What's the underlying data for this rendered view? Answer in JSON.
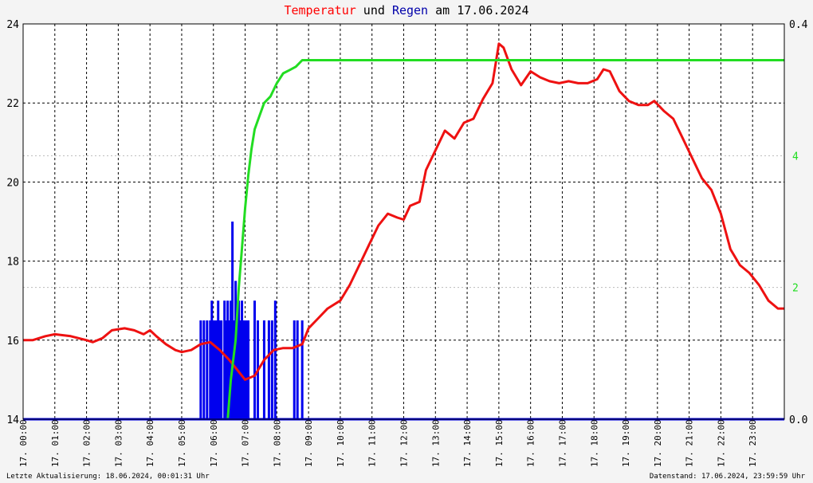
{
  "title": {
    "part1": "Temperatur",
    "part2": " und ",
    "part3": "Regen",
    "part4": " am 17.06.2024",
    "color1": "#ff0000",
    "color3": "#0000aa"
  },
  "footer": {
    "left": "Letzte Aktualisierung: 18.06.2024, 00:01:31 Uhr",
    "right": "Datenstand: 17.06.2024, 23:59:59 Uhr"
  },
  "chart_data": {
    "type": "line",
    "x_tick_labels": [
      "17. 00:00",
      "17. 01:00",
      "17. 02:00",
      "17. 03:00",
      "17. 04:00",
      "17. 05:00",
      "17. 06:00",
      "17. 07:00",
      "17. 08:00",
      "17. 09:00",
      "17. 10:00",
      "17. 11:00",
      "17. 12:00",
      "17. 13:00",
      "17. 14:00",
      "17. 15:00",
      "17. 16:00",
      "17. 17:00",
      "17. 18:00",
      "17. 19:00",
      "17. 20:00",
      "17. 21:00",
      "17. 22:00",
      "17. 23:00"
    ],
    "y_left": {
      "range": [
        14,
        24
      ],
      "ticks": [
        14,
        16,
        18,
        20,
        22,
        24
      ]
    },
    "y_right_rain": {
      "range": [
        0.0,
        0.4
      ],
      "ticks": [
        "0.0",
        "0.4"
      ],
      "color": "#0000aa"
    },
    "y_right_sum": {
      "range": [
        0,
        6
      ],
      "ticks": [
        "2",
        "4"
      ],
      "color": "#22dd22"
    },
    "grid": true,
    "series": [
      {
        "name": "Temperatur",
        "color": "#ee1111",
        "points": [
          [
            0,
            16.0
          ],
          [
            0.3,
            16.0
          ],
          [
            0.7,
            16.1
          ],
          [
            1.0,
            16.15
          ],
          [
            1.5,
            16.1
          ],
          [
            2.0,
            16.0
          ],
          [
            2.2,
            15.95
          ],
          [
            2.5,
            16.05
          ],
          [
            2.8,
            16.25
          ],
          [
            3.2,
            16.3
          ],
          [
            3.5,
            16.25
          ],
          [
            3.8,
            16.15
          ],
          [
            4.0,
            16.25
          ],
          [
            4.2,
            16.1
          ],
          [
            4.5,
            15.9
          ],
          [
            4.8,
            15.75
          ],
          [
            5.0,
            15.7
          ],
          [
            5.3,
            15.75
          ],
          [
            5.6,
            15.9
          ],
          [
            5.9,
            15.95
          ],
          [
            6.2,
            15.75
          ],
          [
            6.5,
            15.5
          ],
          [
            6.8,
            15.2
          ],
          [
            7.0,
            15.0
          ],
          [
            7.3,
            15.1
          ],
          [
            7.6,
            15.5
          ],
          [
            7.9,
            15.75
          ],
          [
            8.2,
            15.8
          ],
          [
            8.5,
            15.8
          ],
          [
            8.8,
            15.9
          ],
          [
            9.0,
            16.3
          ],
          [
            9.3,
            16.55
          ],
          [
            9.6,
            16.8
          ],
          [
            10.0,
            17.0
          ],
          [
            10.3,
            17.4
          ],
          [
            10.6,
            17.9
          ],
          [
            10.9,
            18.4
          ],
          [
            11.2,
            18.9
          ],
          [
            11.5,
            19.2
          ],
          [
            11.8,
            19.1
          ],
          [
            12.0,
            19.05
          ],
          [
            12.2,
            19.4
          ],
          [
            12.5,
            19.5
          ],
          [
            12.7,
            20.3
          ],
          [
            13.0,
            20.8
          ],
          [
            13.3,
            21.3
          ],
          [
            13.6,
            21.1
          ],
          [
            13.9,
            21.5
          ],
          [
            14.2,
            21.6
          ],
          [
            14.5,
            22.1
          ],
          [
            14.8,
            22.5
          ],
          [
            15.0,
            23.5
          ],
          [
            15.15,
            23.4
          ],
          [
            15.4,
            22.85
          ],
          [
            15.7,
            22.45
          ],
          [
            16.0,
            22.8
          ],
          [
            16.3,
            22.65
          ],
          [
            16.6,
            22.55
          ],
          [
            16.9,
            22.5
          ],
          [
            17.2,
            22.55
          ],
          [
            17.5,
            22.5
          ],
          [
            17.8,
            22.5
          ],
          [
            18.1,
            22.6
          ],
          [
            18.3,
            22.85
          ],
          [
            18.5,
            22.8
          ],
          [
            18.8,
            22.3
          ],
          [
            19.1,
            22.05
          ],
          [
            19.4,
            21.95
          ],
          [
            19.7,
            21.95
          ],
          [
            19.9,
            22.05
          ],
          [
            20.2,
            21.8
          ],
          [
            20.5,
            21.6
          ],
          [
            20.8,
            21.1
          ],
          [
            21.1,
            20.6
          ],
          [
            21.4,
            20.1
          ],
          [
            21.7,
            19.8
          ],
          [
            22.0,
            19.2
          ],
          [
            22.3,
            18.3
          ],
          [
            22.6,
            17.9
          ],
          [
            22.9,
            17.7
          ],
          [
            23.2,
            17.4
          ],
          [
            23.5,
            17.0
          ],
          [
            23.8,
            16.8
          ],
          [
            24.0,
            16.8
          ]
        ]
      },
      {
        "name": "Regensumme",
        "color": "#22dd22",
        "points": [
          [
            0,
            0
          ],
          [
            6.45,
            0
          ],
          [
            6.55,
            0.6
          ],
          [
            6.7,
            1.2
          ],
          [
            6.8,
            2.0
          ],
          [
            6.9,
            2.6
          ],
          [
            7.0,
            3.2
          ],
          [
            7.1,
            3.7
          ],
          [
            7.2,
            4.1
          ],
          [
            7.3,
            4.4
          ],
          [
            7.45,
            4.6
          ],
          [
            7.6,
            4.8
          ],
          [
            7.8,
            4.9
          ],
          [
            8.0,
            5.1
          ],
          [
            8.2,
            5.25
          ],
          [
            8.4,
            5.3
          ],
          [
            8.6,
            5.35
          ],
          [
            8.8,
            5.45
          ],
          [
            9.0,
            5.45
          ],
          [
            24.0,
            5.45
          ]
        ]
      },
      {
        "name": "Regen",
        "color": "#0000ee",
        "bars": [
          [
            5.6,
            0.1
          ],
          [
            5.7,
            0.1
          ],
          [
            5.8,
            0.1
          ],
          [
            5.9,
            0.1
          ],
          [
            5.95,
            0.12
          ],
          [
            6.0,
            0.1
          ],
          [
            6.05,
            0.1
          ],
          [
            6.1,
            0.1
          ],
          [
            6.15,
            0.12
          ],
          [
            6.2,
            0.1
          ],
          [
            6.25,
            0.1
          ],
          [
            6.35,
            0.12
          ],
          [
            6.4,
            0.1
          ],
          [
            6.45,
            0.12
          ],
          [
            6.5,
            0.1
          ],
          [
            6.55,
            0.12
          ],
          [
            6.6,
            0.2
          ],
          [
            6.65,
            0.1
          ],
          [
            6.7,
            0.14
          ],
          [
            6.75,
            0.1
          ],
          [
            6.8,
            0.12
          ],
          [
            6.85,
            0.1
          ],
          [
            6.9,
            0.12
          ],
          [
            6.95,
            0.1
          ],
          [
            7.0,
            0.1
          ],
          [
            7.05,
            0.1
          ],
          [
            7.1,
            0.1
          ],
          [
            7.3,
            0.12
          ],
          [
            7.4,
            0.1
          ],
          [
            7.6,
            0.1
          ],
          [
            7.75,
            0.1
          ],
          [
            7.85,
            0.1
          ],
          [
            7.95,
            0.12
          ],
          [
            8.55,
            0.1
          ],
          [
            8.65,
            0.1
          ],
          [
            8.8,
            0.1
          ]
        ]
      }
    ]
  }
}
